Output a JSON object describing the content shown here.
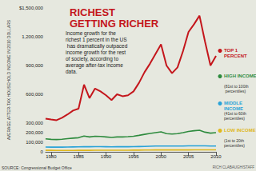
{
  "chart_data": {
    "type": "line",
    "title": "RICHEST GETTING RICHER",
    "annotation": "Income growth for the richest 1 percent in the US has dramatically outpaced income growth for the rest of society, according to average after-tax income data.",
    "ylabel": "AVERAGE AFTER-TAX HOUSEHOLD INCOME IN 2010 DOLLARS",
    "source": "SOURCE: Congressional Budget Office",
    "credit": "RICH CLABAUGH/STAFF",
    "x": [
      1979,
      1980,
      1981,
      1982,
      1983,
      1984,
      1985,
      1986,
      1987,
      1988,
      1989,
      1990,
      1991,
      1992,
      1993,
      1994,
      1995,
      1996,
      1997,
      1998,
      1999,
      2000,
      2001,
      2002,
      2003,
      2004,
      2005,
      2006,
      2007,
      2008,
      2009,
      2010
    ],
    "xlim": [
      1979,
      2010
    ],
    "xticks": [
      1980,
      1985,
      1990,
      1995,
      2000,
      2005,
      2010
    ],
    "ylim": [
      0,
      1500000
    ],
    "yticks": [
      0,
      {
        "value": 100000,
        "label": "100,000"
      },
      {
        "value": 200000,
        "label": "200,000"
      },
      {
        "value": 300000,
        "label": "300,000"
      },
      {
        "value": 600000,
        "label": "600,000"
      },
      {
        "value": 900000,
        "label": "900,000"
      },
      {
        "value": 1200000,
        "label": "1,200,000"
      },
      {
        "value": 1500000,
        "label": "$1,500,000"
      }
    ],
    "grid": false,
    "legend": "right",
    "series": [
      {
        "name": "TOP 1 PERCENT",
        "color": "#c4161c",
        "values": [
          346000,
          337000,
          330000,
          355000,
          390000,
          430000,
          450000,
          700000,
          560000,
          660000,
          630000,
          590000,
          540000,
          600000,
          580000,
          590000,
          630000,
          720000,
          830000,
          920000,
          1020000,
          1120000,
          900000,
          820000,
          880000,
          1050000,
          1250000,
          1330000,
          1420000,
          1150000,
          900000,
          1000000
        ]
      },
      {
        "name": "HIGH INCOME",
        "detail": "(81st to 100th percentiles)",
        "color": "#2e8b3e",
        "values": [
          135000,
          130000,
          128000,
          131000,
          137000,
          143000,
          147000,
          165000,
          155000,
          163000,
          160000,
          155000,
          150000,
          155000,
          155000,
          158000,
          163000,
          172000,
          182000,
          192000,
          200000,
          208000,
          190000,
          185000,
          190000,
          200000,
          212000,
          220000,
          225000,
          205000,
          195000,
          200000
        ]
      },
      {
        "name": "MIDDLE INCOME",
        "detail": "(41st to 60th percentiles)",
        "color": "#2aa3d8",
        "values": [
          50000,
          49000,
          49000,
          49000,
          50000,
          51000,
          52000,
          53000,
          53000,
          54000,
          54000,
          53000,
          52000,
          53000,
          53000,
          53000,
          54000,
          55000,
          56000,
          58000,
          60000,
          61000,
          60000,
          60000,
          61000,
          61000,
          62000,
          62000,
          63000,
          62000,
          61000,
          61000
        ]
      },
      {
        "name": "LOW INCOME",
        "detail": "(1st to 20th percentiles)",
        "color": "#e0b81e",
        "values": [
          16000,
          16000,
          15000,
          15000,
          15000,
          15000,
          16000,
          16000,
          16000,
          17000,
          17000,
          17000,
          17000,
          17000,
          17000,
          17000,
          18000,
          18000,
          19000,
          19000,
          20000,
          20000,
          20000,
          20000,
          20000,
          20000,
          20000,
          21000,
          21000,
          21000,
          21000,
          21000
        ]
      }
    ]
  }
}
